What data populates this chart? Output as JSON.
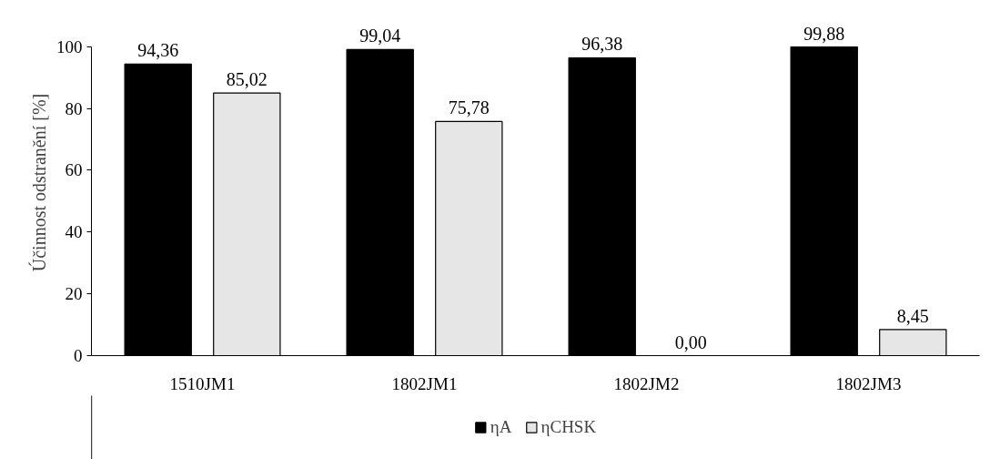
{
  "chart_data": {
    "type": "bar",
    "ylabel": "Účinnost odstranění [%]",
    "categories": [
      "1510JM1",
      "1802JM1",
      "1802JM2",
      "1802JM3"
    ],
    "series": [
      {
        "name": "ηA",
        "color": "#000000",
        "values": [
          94.36,
          99.04,
          96.38,
          99.88
        ],
        "value_labels": [
          "94,36",
          "99,04",
          "96,38",
          "99,88"
        ]
      },
      {
        "name": "ηCHSK",
        "color": "#e6e6e6",
        "values": [
          85.02,
          75.78,
          0.0,
          8.45
        ],
        "value_labels": [
          "85,02",
          "75,78",
          "0,00",
          "8,45"
        ]
      }
    ],
    "ylim": [
      0,
      100
    ],
    "yticks": [
      0,
      20,
      40,
      60,
      80,
      100
    ],
    "grid": false,
    "legend": "bottom"
  }
}
